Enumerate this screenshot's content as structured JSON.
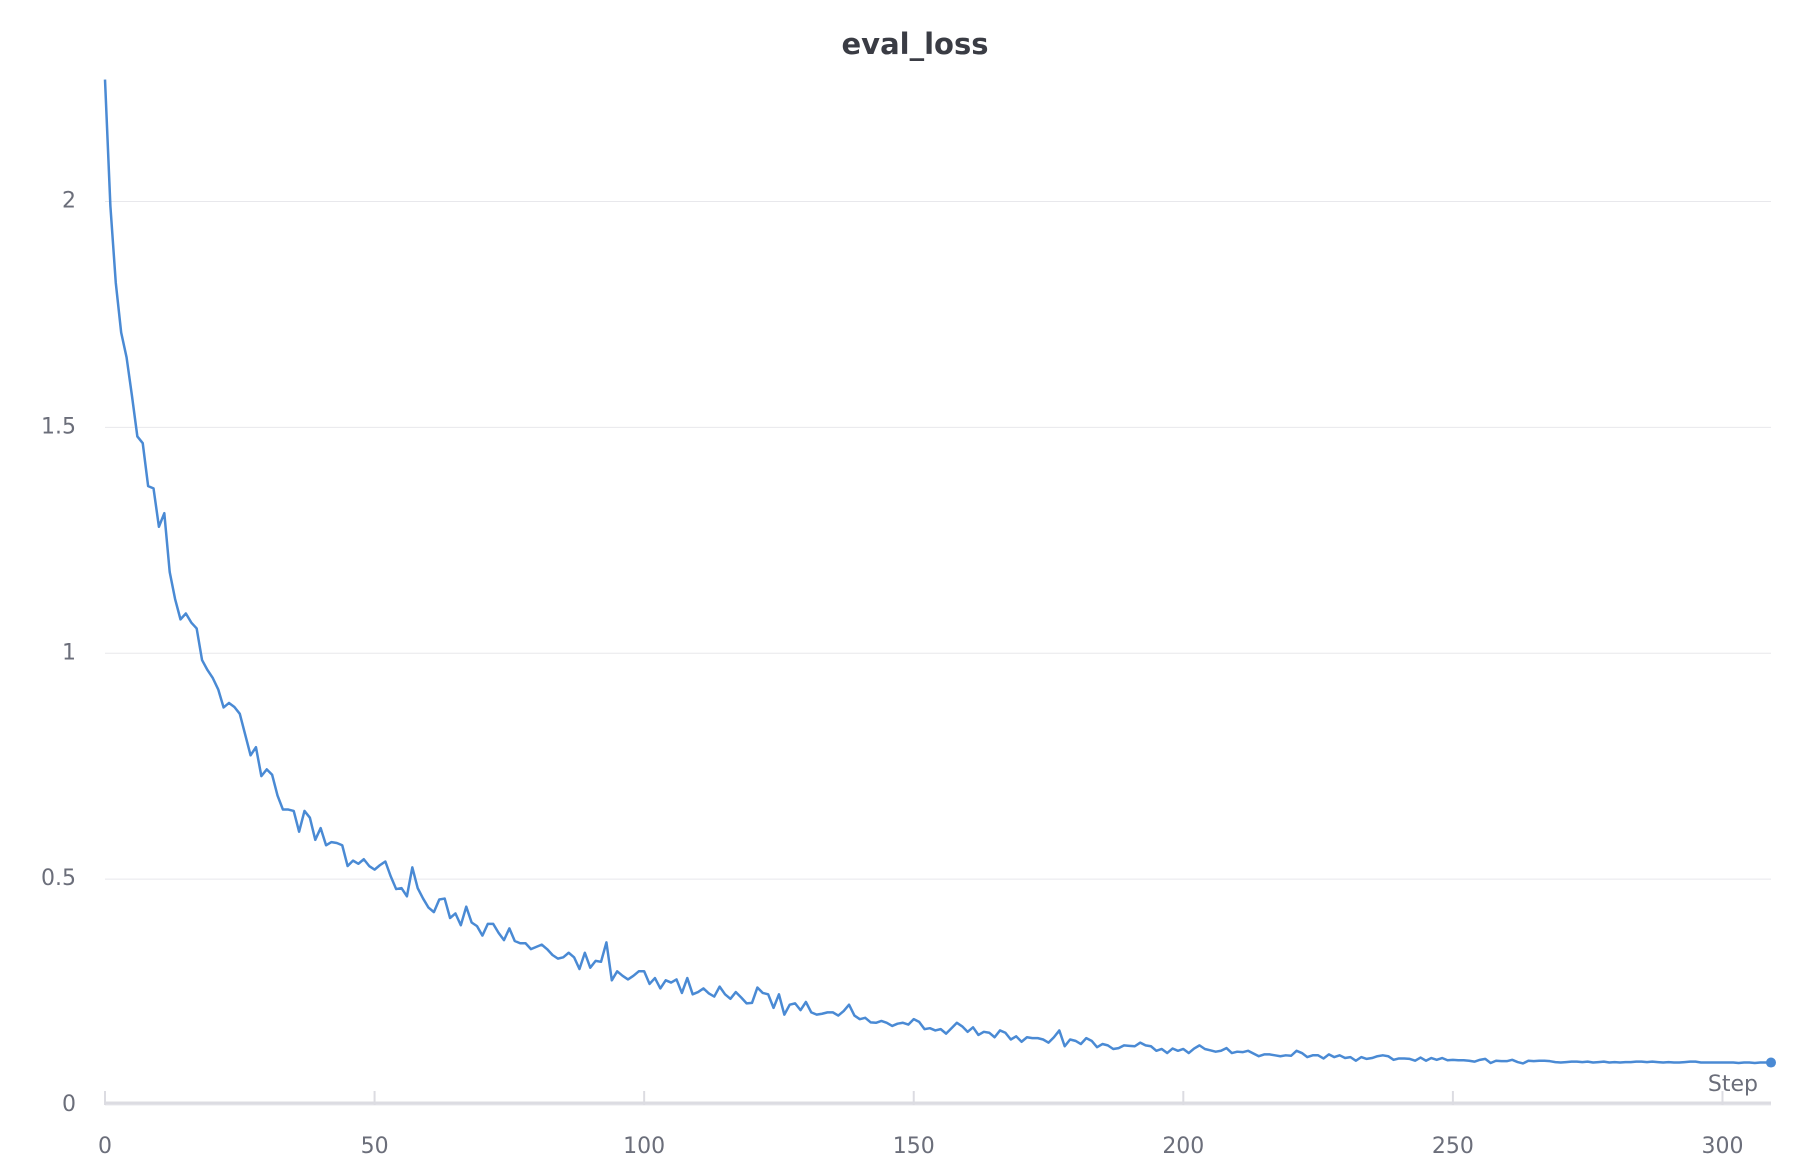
{
  "chart_data": {
    "type": "line",
    "title": "eval_loss",
    "x_label": "Step",
    "color": "#4a8ad4",
    "x": [
      0,
      1,
      2,
      3,
      4,
      5,
      6,
      7,
      8,
      9,
      10,
      11,
      12,
      13,
      14,
      15,
      16,
      17,
      18,
      19,
      20,
      21,
      22,
      23,
      24,
      25,
      26,
      27,
      28,
      29,
      30,
      31,
      32,
      33,
      34,
      35,
      36,
      37,
      38,
      39,
      40,
      41,
      42,
      43,
      44,
      45,
      46,
      47,
      48,
      49,
      50,
      51,
      52,
      53,
      54,
      55,
      56,
      57,
      58,
      59,
      60,
      61,
      62,
      63,
      64,
      65,
      66,
      67,
      68,
      69,
      70,
      71,
      72,
      73,
      74,
      75,
      76,
      77,
      78,
      79,
      80,
      81,
      82,
      83,
      84,
      85,
      86,
      87,
      88,
      89,
      90,
      91,
      92,
      93,
      94,
      95,
      96,
      97,
      98,
      99,
      100,
      101,
      102,
      103,
      104,
      105,
      106,
      107,
      108,
      109,
      110,
      111,
      112,
      113,
      114,
      115,
      116,
      117,
      118,
      119,
      120,
      121,
      122,
      123,
      124,
      125,
      126,
      127,
      128,
      129,
      130,
      131,
      132,
      133,
      134,
      135,
      136,
      137,
      138,
      139,
      140,
      141,
      142,
      143,
      144,
      145,
      146,
      147,
      148,
      149,
      150,
      151,
      152,
      153,
      154,
      155,
      156,
      157,
      158,
      159,
      160,
      161,
      162,
      163,
      164,
      165,
      166,
      167,
      168,
      169,
      170,
      171,
      172,
      173,
      174,
      175,
      176,
      177,
      178,
      179,
      180,
      181,
      182,
      183,
      184,
      185,
      186,
      187,
      188,
      189,
      190,
      191,
      192,
      193,
      194,
      195,
      196,
      197,
      198,
      199,
      200,
      201,
      202,
      203,
      204,
      205,
      206,
      207,
      208,
      209,
      210,
      211,
      212,
      213,
      214,
      215,
      216,
      217,
      218,
      219,
      220,
      221,
      222,
      223,
      224,
      225,
      226,
      227,
      228,
      229,
      230,
      231,
      232,
      233,
      234,
      235,
      236,
      237,
      238,
      239,
      240,
      241,
      242,
      243,
      244,
      245,
      246,
      247,
      248,
      249,
      250,
      251,
      252,
      253,
      254,
      255,
      256,
      257,
      258,
      259,
      260,
      261,
      262,
      263,
      264,
      265,
      266,
      267,
      268,
      269,
      270,
      271,
      272,
      273,
      274,
      275,
      276,
      277,
      278,
      279,
      280,
      281,
      282,
      283,
      284,
      285,
      286,
      287,
      288,
      289,
      290,
      291,
      292,
      293,
      294,
      295,
      296,
      297,
      298,
      299,
      300,
      301,
      302,
      303,
      304,
      305,
      306,
      307,
      308,
      309
    ],
    "values": [
      2.27,
      1.99,
      1.82,
      1.71,
      1.655,
      1.57,
      1.48,
      1.465,
      1.37,
      1.365,
      1.28,
      1.31,
      1.18,
      1.12,
      1.075,
      1.088,
      1.068,
      1.055,
      0.985,
      0.963,
      0.945,
      0.92,
      0.88,
      0.89,
      0.881,
      0.866,
      0.82,
      0.774,
      0.792,
      0.728,
      0.743,
      0.731,
      0.685,
      0.654,
      0.654,
      0.651,
      0.605,
      0.651,
      0.636,
      0.587,
      0.613,
      0.575,
      0.582,
      0.58,
      0.575,
      0.529,
      0.541,
      0.534,
      0.544,
      0.529,
      0.521,
      0.531,
      0.539,
      0.506,
      0.478,
      0.48,
      0.462,
      0.526,
      0.48,
      0.457,
      0.437,
      0.427,
      0.455,
      0.457,
      0.414,
      0.424,
      0.398,
      0.439,
      0.404,
      0.396,
      0.375,
      0.401,
      0.401,
      0.381,
      0.365,
      0.391,
      0.363,
      0.358,
      0.358,
      0.345,
      0.35,
      0.355,
      0.345,
      0.332,
      0.324,
      0.327,
      0.337,
      0.327,
      0.301,
      0.337,
      0.304,
      0.319,
      0.317,
      0.36,
      0.276,
      0.296,
      0.286,
      0.278,
      0.286,
      0.296,
      0.296,
      0.268,
      0.281,
      0.258,
      0.276,
      0.271,
      0.278,
      0.248,
      0.281,
      0.245,
      0.25,
      0.258,
      0.247,
      0.24,
      0.262,
      0.245,
      0.235,
      0.25,
      0.238,
      0.225,
      0.226,
      0.26,
      0.248,
      0.245,
      0.215,
      0.245,
      0.2,
      0.222,
      0.225,
      0.21,
      0.228,
      0.205,
      0.2,
      0.202,
      0.205,
      0.205,
      0.198,
      0.208,
      0.222,
      0.198,
      0.19,
      0.193,
      0.183,
      0.182,
      0.186,
      0.182,
      0.175,
      0.18,
      0.182,
      0.178,
      0.19,
      0.184,
      0.168,
      0.17,
      0.165,
      0.168,
      0.158,
      0.17,
      0.182,
      0.174,
      0.162,
      0.172,
      0.155,
      0.162,
      0.16,
      0.15,
      0.165,
      0.16,
      0.145,
      0.152,
      0.14,
      0.15,
      0.148,
      0.148,
      0.145,
      0.138,
      0.15,
      0.165,
      0.13,
      0.145,
      0.142,
      0.135,
      0.148,
      0.142,
      0.128,
      0.135,
      0.132,
      0.124,
      0.126,
      0.132,
      0.131,
      0.13,
      0.138,
      0.132,
      0.13,
      0.12,
      0.124,
      0.115,
      0.125,
      0.12,
      0.124,
      0.115,
      0.125,
      0.132,
      0.124,
      0.121,
      0.118,
      0.12,
      0.126,
      0.115,
      0.118,
      0.117,
      0.12,
      0.114,
      0.108,
      0.112,
      0.112,
      0.11,
      0.108,
      0.11,
      0.109,
      0.12,
      0.115,
      0.106,
      0.11,
      0.11,
      0.103,
      0.112,
      0.106,
      0.11,
      0.104,
      0.106,
      0.098,
      0.106,
      0.102,
      0.104,
      0.108,
      0.11,
      0.108,
      0.1,
      0.103,
      0.103,
      0.102,
      0.098,
      0.105,
      0.098,
      0.104,
      0.1,
      0.104,
      0.099,
      0.1,
      0.099,
      0.099,
      0.098,
      0.096,
      0.1,
      0.102,
      0.093,
      0.098,
      0.097,
      0.097,
      0.1,
      0.095,
      0.092,
      0.098,
      0.097,
      0.098,
      0.098,
      0.097,
      0.095,
      0.094,
      0.095,
      0.096,
      0.096,
      0.095,
      0.096,
      0.094,
      0.095,
      0.096,
      0.094,
      0.095,
      0.094,
      0.095,
      0.095,
      0.096,
      0.096,
      0.095,
      0.096,
      0.095,
      0.094,
      0.095,
      0.094,
      0.094,
      0.095,
      0.096,
      0.096,
      0.094,
      0.094,
      0.094,
      0.094,
      0.094,
      0.094,
      0.094,
      0.093,
      0.094,
      0.094,
      0.093,
      0.094,
      0.094,
      0.094
    ],
    "xlim": [
      0,
      309
    ],
    "xticks": [
      0,
      50,
      100,
      150,
      200,
      250,
      300
    ],
    "ylim": [
      0,
      2.3
    ],
    "yticks": [
      0,
      0.5,
      1,
      1.5,
      2
    ],
    "grid": true
  }
}
